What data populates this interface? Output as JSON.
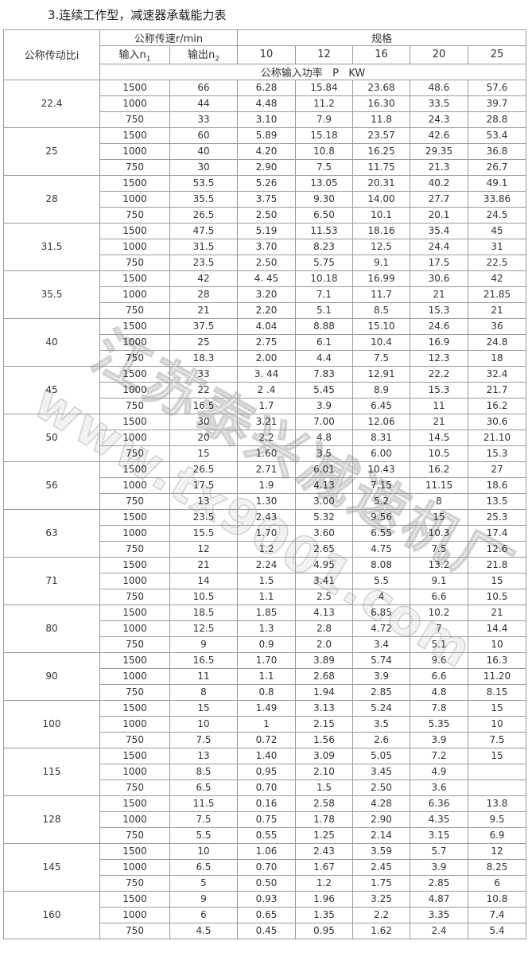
{
  "page": {
    "title": "3.连续工作型，减速器承载能力表"
  },
  "colors": {
    "border": "#9a9a9a",
    "text": "#333333",
    "watermark": "#d2d2d2",
    "background": "#ffffff"
  },
  "watermark": {
    "company": "江苏泰兴减速机厂",
    "url": "www.tx9001.com"
  },
  "table": {
    "header": {
      "ratio_label": "公称传动比i",
      "speed_group_label": "公称传速r/min",
      "input_label": "输入n",
      "input_sub": "1",
      "output_label": "输出n",
      "output_sub": "2",
      "spec_group_label": "规格",
      "spec_columns": [
        "10",
        "12",
        "16",
        "20",
        "25"
      ],
      "power_label": "公称输入功率   P   KW"
    },
    "groups": [
      {
        "ratio": "22.4",
        "rows": [
          {
            "n1": "1500",
            "n2": "66",
            "values": [
              "6.28",
              "15.84",
              "23.68",
              "48.6",
              "57.6"
            ]
          },
          {
            "n1": "1000",
            "n2": "44",
            "values": [
              "4.48",
              "11.2",
              "16.30",
              "33.5",
              "39.7"
            ]
          },
          {
            "n1": "750",
            "n2": "33",
            "values": [
              "3.10",
              "7.9",
              "11.8",
              "24.3",
              "28.8"
            ]
          }
        ]
      },
      {
        "ratio": "25",
        "rows": [
          {
            "n1": "1500",
            "n2": "60",
            "values": [
              "5.89",
              "15.18",
              "23.57",
              "42.6",
              "53.4"
            ]
          },
          {
            "n1": "1000",
            "n2": "40",
            "values": [
              "4.20",
              "10.8",
              "16.25",
              "29.35",
              "36.8"
            ]
          },
          {
            "n1": "750",
            "n2": "30",
            "values": [
              "2.90",
              "7.5",
              "11.75",
              "21.3",
              "26.7"
            ]
          }
        ]
      },
      {
        "ratio": "28",
        "rows": [
          {
            "n1": "1500",
            "n2": "53.5",
            "values": [
              "5.26",
              "13.05",
              "20.31",
              "40.2",
              "49.1"
            ]
          },
          {
            "n1": "1000",
            "n2": "35.5",
            "values": [
              "3.75",
              "9.30",
              "14.00",
              "27.7",
              "33.86"
            ]
          },
          {
            "n1": "750",
            "n2": "26.5",
            "values": [
              "2.50",
              "6.50",
              "10.1",
              "20.1",
              "24.5"
            ]
          }
        ]
      },
      {
        "ratio": "31.5",
        "rows": [
          {
            "n1": "1500",
            "n2": "47.5",
            "values": [
              "5.19",
              "11.53",
              "18.16",
              "35.4",
              "45"
            ]
          },
          {
            "n1": "1000",
            "n2": "31.5",
            "values": [
              "3.70",
              "8.23",
              "12.5",
              "24.4",
              "31"
            ]
          },
          {
            "n1": "750",
            "n2": "23.5",
            "values": [
              "2.50",
              "5.75",
              "9.1",
              "17.5",
              "22.5"
            ]
          }
        ]
      },
      {
        "ratio": "35.5",
        "rows": [
          {
            "n1": "1500",
            "n2": "42",
            "values": [
              "4. 45",
              "10.18",
              "16.99",
              "30.6",
              "42"
            ]
          },
          {
            "n1": "1000",
            "n2": "28",
            "values": [
              "3.20",
              "7.1",
              "11.7",
              "21",
              "21.85"
            ]
          },
          {
            "n1": "750",
            "n2": "21",
            "values": [
              "2.20",
              "5.1",
              "8.5",
              "15.3",
              "21"
            ]
          }
        ]
      },
      {
        "ratio": "40",
        "rows": [
          {
            "n1": "1500",
            "n2": "37.5",
            "values": [
              "4.04",
              "8.88",
              "15.10",
              "24.6",
              "36"
            ]
          },
          {
            "n1": "1000",
            "n2": "25",
            "values": [
              "2.75",
              "6.1",
              "10.4",
              "16.9",
              "24.8"
            ]
          },
          {
            "n1": "750",
            "n2": "18.3",
            "values": [
              "2.00",
              "4.4",
              "7.5",
              "12.3",
              "18"
            ]
          }
        ]
      },
      {
        "ratio": "45",
        "rows": [
          {
            "n1": "1500",
            "n2": "33",
            "values": [
              "3. 44",
              "7.83",
              "12.91",
              "22.2",
              "32.4"
            ]
          },
          {
            "n1": "1000",
            "n2": "22",
            "values": [
              "2 .4",
              "5.45",
              "8.9",
              "15.3",
              "21.7"
            ]
          },
          {
            "n1": "750",
            "n2": "16.5",
            "values": [
              "1.7",
              "3.9",
              "6.45",
              "11",
              "16.2"
            ]
          }
        ]
      },
      {
        "ratio": "50",
        "rows": [
          {
            "n1": "1500",
            "n2": "30",
            "values": [
              "3.21",
              "7.00",
              "12.06",
              "21",
              "30.6"
            ]
          },
          {
            "n1": "1000",
            "n2": "20",
            "values": [
              "2.2",
              "4.8",
              "8.31",
              "14.5",
              "21.10"
            ]
          },
          {
            "n1": "750",
            "n2": "15",
            "values": [
              "1.60",
              "3.5",
              "6.00",
              "10.5",
              "15.3"
            ]
          }
        ]
      },
      {
        "ratio": "56",
        "rows": [
          {
            "n1": "1500",
            "n2": "26.5",
            "values": [
              "2.71",
              "6.01",
              "10.43",
              "16.2",
              "27"
            ]
          },
          {
            "n1": "1000",
            "n2": "17.5",
            "values": [
              "1.9",
              "4.13",
              "7.15",
              "11.15",
              "18.6"
            ]
          },
          {
            "n1": "750",
            "n2": "13",
            "values": [
              "1.30",
              "3.00",
              "5.2",
              "8",
              "13.5"
            ]
          }
        ]
      },
      {
        "ratio": "63",
        "rows": [
          {
            "n1": "1500",
            "n2": "23.5",
            "values": [
              "2.43",
              "5.32",
              "9.56",
              "15",
              "25.3"
            ]
          },
          {
            "n1": "1000",
            "n2": "15.5",
            "values": [
              "1.70",
              "3.60",
              "6.55",
              "10.3",
              "17.4"
            ]
          },
          {
            "n1": "750",
            "n2": "12",
            "values": [
              "1.2",
              "2.65",
              "4.75",
              "7.5",
              "12.6"
            ]
          }
        ]
      },
      {
        "ratio": "71",
        "rows": [
          {
            "n1": "1500",
            "n2": "21",
            "values": [
              "2.24",
              "4.95",
              "8.08",
              "13.2",
              "21.8"
            ]
          },
          {
            "n1": "1000",
            "n2": "14",
            "values": [
              "1.5",
              "3.41",
              "5.5",
              "9.1",
              "15"
            ]
          },
          {
            "n1": "750",
            "n2": "10.5",
            "values": [
              "1.1",
              "2.5",
              "4",
              "6.6",
              "10.5"
            ]
          }
        ]
      },
      {
        "ratio": "80",
        "rows": [
          {
            "n1": "1500",
            "n2": "18.5",
            "values": [
              "1.85",
              "4.13",
              "6.85",
              "10.2",
              "21"
            ]
          },
          {
            "n1": "1000",
            "n2": "12.5",
            "values": [
              "1.3",
              "2.8",
              "4.72",
              "7",
              "14.4"
            ]
          },
          {
            "n1": "750",
            "n2": "9",
            "values": [
              "0.9",
              "2.0",
              "3.4",
              "5.1",
              "10"
            ]
          }
        ]
      },
      {
        "ratio": "90",
        "rows": [
          {
            "n1": "1500",
            "n2": "16.5",
            "values": [
              "1.70",
              "3.89",
              "5.74",
              "9.6",
              "16.3"
            ]
          },
          {
            "n1": "1000",
            "n2": "11",
            "values": [
              "1.1",
              "2.68",
              "3.9",
              "6.6",
              "11.20"
            ]
          },
          {
            "n1": "750",
            "n2": "8",
            "values": [
              "0.8",
              "1.94",
              "2.85",
              "4.8",
              "8.15"
            ]
          }
        ]
      },
      {
        "ratio": "100",
        "rows": [
          {
            "n1": "1500",
            "n2": "15",
            "values": [
              "1.49",
              "3.13",
              "5.24",
              "7.8",
              "15"
            ]
          },
          {
            "n1": "1000",
            "n2": "10",
            "values": [
              "1",
              "2.15",
              "3.5",
              "5.35",
              "10"
            ]
          },
          {
            "n1": "750",
            "n2": "7.5",
            "values": [
              "0.72",
              "1.56",
              "2.6",
              "3.9",
              "7.5"
            ]
          }
        ]
      },
      {
        "ratio": "115",
        "rows": [
          {
            "n1": "1500",
            "n2": "13",
            "values": [
              "1.40",
              "3.09",
              "5.05",
              "7.2",
              "15"
            ]
          },
          {
            "n1": "1000",
            "n2": "8.5",
            "values": [
              "0.95",
              "2.10",
              "3.45",
              "4.9",
              ""
            ]
          },
          {
            "n1": "750",
            "n2": "6.5",
            "values": [
              "0.70",
              "1.5",
              "2.50",
              "3.6",
              ""
            ]
          }
        ]
      },
      {
        "ratio": "128",
        "rows": [
          {
            "n1": "1500",
            "n2": "11.5",
            "values": [
              "0.16",
              "2.58",
              "4.28",
              "6.36",
              "13.8"
            ]
          },
          {
            "n1": "1000",
            "n2": "7.5",
            "values": [
              "0.75",
              "1.78",
              "2.90",
              "4.35",
              "9.5"
            ]
          },
          {
            "n1": "750",
            "n2": "5.5",
            "values": [
              "0.55",
              "1.25",
              "2.14",
              "3.15",
              "6.9"
            ]
          }
        ]
      },
      {
        "ratio": "145",
        "rows": [
          {
            "n1": "1500",
            "n2": "10",
            "values": [
              "1.06",
              "2.43",
              "3.59",
              "5.7",
              "12"
            ]
          },
          {
            "n1": "1000",
            "n2": "6.5",
            "values": [
              "0.70",
              "1.67",
              "2.45",
              "3.9",
              "8.25"
            ]
          },
          {
            "n1": "750",
            "n2": "5",
            "values": [
              "0.50",
              "1.2",
              "1.75",
              "2.85",
              "6"
            ]
          }
        ]
      },
      {
        "ratio": "160",
        "rows": [
          {
            "n1": "1500",
            "n2": "9",
            "values": [
              "0.93",
              "1.96",
              "3.25",
              "4.87",
              "10.8"
            ]
          },
          {
            "n1": "1000",
            "n2": "6",
            "values": [
              "0.65",
              "1.35",
              "2.2",
              "3.35",
              "7.4"
            ]
          },
          {
            "n1": "750",
            "n2": "4.5",
            "values": [
              "0.45",
              "0.95",
              "1.62",
              "2.4",
              "5.4"
            ]
          }
        ]
      }
    ]
  }
}
